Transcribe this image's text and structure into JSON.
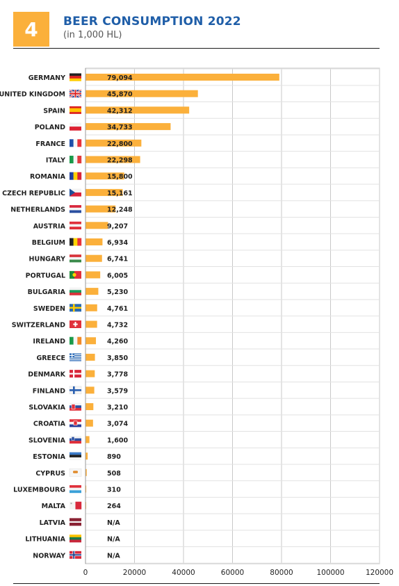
{
  "header": {
    "badge_number": "4",
    "title": "BEER CONSUMPTION 2022",
    "subtitle": "(in 1,000 HL)"
  },
  "colors": {
    "bar": "#fbb03b",
    "title": "#1f5ea8",
    "grid": "#c8c8c8"
  },
  "chart_data": {
    "type": "bar",
    "orientation": "horizontal",
    "title": "BEER CONSUMPTION 2022",
    "subtitle": "(in 1,000 HL)",
    "xlim": [
      0,
      120000
    ],
    "xticks": [
      0,
      20000,
      40000,
      60000,
      80000,
      100000,
      120000
    ],
    "grid": true,
    "categories": [
      "GERMANY",
      "UNITED KINGDOM",
      "SPAIN",
      "POLAND",
      "FRANCE",
      "ITALY",
      "ROMANIA",
      "CZECH REPUBLIC",
      "NETHERLANDS",
      "AUSTRIA",
      "BELGIUM",
      "HUNGARY",
      "PORTUGAL",
      "BULGARIA",
      "SWEDEN",
      "SWITZERLAND",
      "IRELAND",
      "GREECE",
      "DENMARK",
      "FINLAND",
      "SLOVAKIA",
      "CROATIA",
      "SLOVENIA",
      "ESTONIA",
      "CYPRUS",
      "LUXEMBOURG",
      "MALTA",
      "LATVIA",
      "LITHUANIA",
      "NORWAY"
    ],
    "values": [
      79094,
      45870,
      42312,
      34733,
      22800,
      22298,
      15800,
      15161,
      12248,
      9207,
      6934,
      6741,
      6005,
      5230,
      4761,
      4732,
      4260,
      3850,
      3778,
      3579,
      3210,
      3074,
      1600,
      890,
      508,
      310,
      264,
      null,
      null,
      null
    ],
    "labels": [
      "79,094",
      "45,870",
      "42,312",
      "34,733",
      "22,800",
      "22,298",
      "15,800",
      "15,161",
      "12,248",
      "9,207",
      "6,934",
      "6,741",
      "6,005",
      "5,230",
      "4,761",
      "4,732",
      "4,260",
      "3,850",
      "3,778",
      "3,579",
      "3,210",
      "3,074",
      "1,600",
      "890",
      "508",
      "310",
      "264",
      "N/A",
      "N/A",
      "N/A"
    ],
    "flags": [
      "germany-flag",
      "uk-flag",
      "spain-flag",
      "poland-flag",
      "france-flag",
      "italy-flag",
      "romania-flag",
      "czech-flag",
      "netherlands-flag",
      "austria-flag",
      "belgium-flag",
      "hungary-flag",
      "portugal-flag",
      "bulgaria-flag",
      "sweden-flag",
      "switzerland-flag",
      "ireland-flag",
      "greece-flag",
      "denmark-flag",
      "finland-flag",
      "slovakia-flag",
      "croatia-flag",
      "slovenia-flag",
      "estonia-flag",
      "cyprus-flag",
      "luxembourg-flag",
      "malta-flag",
      "latvia-flag",
      "lithuania-flag",
      "norway-flag"
    ]
  }
}
